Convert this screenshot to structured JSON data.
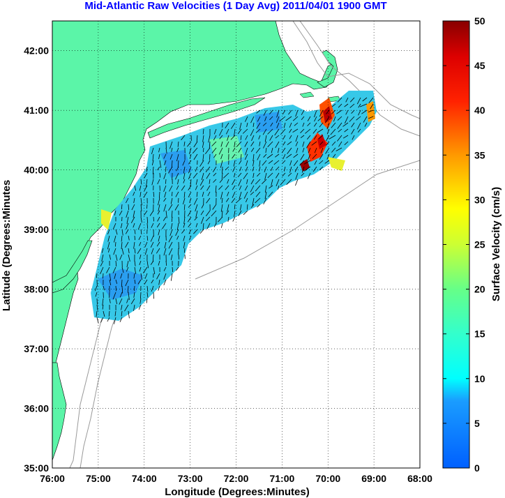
{
  "title": "Mid-Atlantic Raw Velocities (1 Day Avg) 2011/04/01 1900 GMT",
  "map": {
    "xlabel": "Longitude (Degrees:Minutes)",
    "ylabel": "Latitude (Degrees:Minutes",
    "x_ticks": [
      "76:00",
      "75:00",
      "74:00",
      "73:00",
      "72:00",
      "71:00",
      "70:00",
      "69:00",
      "68:00"
    ],
    "y_ticks": [
      "35:00",
      "36:00",
      "37:00",
      "38:00",
      "39:00",
      "40:00",
      "41:00",
      "42:00"
    ],
    "lon_range": [
      -76,
      -68
    ],
    "lat_range": [
      35,
      42.5
    ],
    "land_color": "#5bf5a8",
    "grid": "dotted"
  },
  "colorbar": {
    "label": "Surface Velocity (cm/s)",
    "ticks": [
      "0",
      "5",
      "10",
      "15",
      "20",
      "25",
      "30",
      "35",
      "40",
      "45",
      "50"
    ],
    "range": [
      0,
      50
    ],
    "colormap": "jet"
  }
}
